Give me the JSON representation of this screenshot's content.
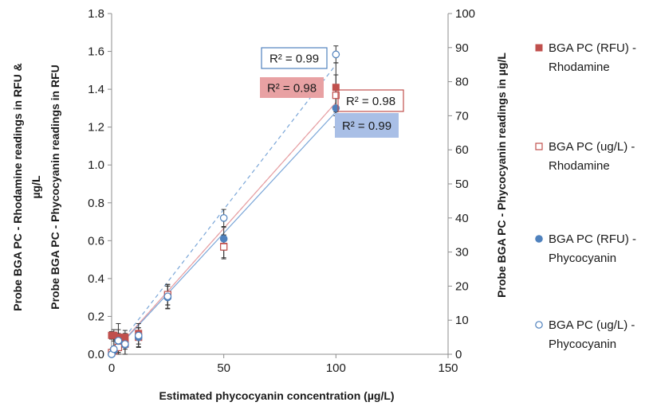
{
  "chart_data": {
    "type": "scatter",
    "xlabel": "Estimated phycocyanin concentration (µg/L)",
    "ylabel_left_line1": "Probe BGA PC - Rhodamine readings in RFU &",
    "ylabel_left_line1b": "µg/L",
    "ylabel_left_line2": "Probe BGA PC - Phycocyanin readings in RFU",
    "ylabel_right": "Probe BGA PC - Phycocyanin readings in µg/L",
    "xlim": [
      0,
      150
    ],
    "ylim_left": [
      0,
      1.8
    ],
    "ylim_right": [
      0,
      100
    ],
    "x_ticks": [
      "0",
      "50",
      "100",
      "150"
    ],
    "y_left_ticks": [
      "0.0",
      "0.2",
      "0.4",
      "0.6",
      "0.8",
      "1.0",
      "1.2",
      "1.4",
      "1.6",
      "1.8"
    ],
    "y_right_ticks": [
      "0",
      "10",
      "20",
      "30",
      "40",
      "50",
      "60",
      "70",
      "80",
      "90",
      "100"
    ],
    "grid": false,
    "legend_position": "right",
    "series": [
      {
        "name": "BGA PC (RFU) - Rhodamine",
        "marker": "filled-square",
        "color": "#c0504d",
        "axis": "left",
        "x": [
          0,
          1,
          3,
          6,
          12,
          25,
          50,
          100
        ],
        "y": [
          0.1,
          0.1,
          0.09,
          0.09,
          0.11,
          0.31,
          0.57,
          1.41
        ],
        "err": [
          0.02,
          0.03,
          0.02,
          0.02,
          0.03,
          0.05,
          0.06,
          0.13
        ],
        "r2": "R² = 0.98",
        "trend_end": 1.33
      },
      {
        "name": "BGA PC (ug/L) - Rhodamine",
        "marker": "open-square",
        "color": "#c0504d",
        "axis": "right",
        "x": [
          0,
          1,
          3,
          6,
          12,
          25,
          50,
          100
        ],
        "y": [
          0.5,
          1.0,
          2.0,
          3.0,
          5.0,
          17.5,
          31.5,
          76.0
        ],
        "err": [
          1.0,
          1.0,
          1.5,
          1.5,
          2.0,
          3.0,
          3.5,
          6.0
        ],
        "r2": "R² = 0.98",
        "trend_end": 73.9
      },
      {
        "name": "BGA PC (RFU) - Phycocyanin",
        "marker": "filled-circle",
        "color": "#4f81bd",
        "axis": "left",
        "x": [
          0,
          1,
          3,
          6,
          12,
          25,
          50,
          100
        ],
        "y": [
          0.0,
          0.02,
          0.07,
          0.05,
          0.09,
          0.3,
          0.61,
          1.3
        ],
        "err": [
          0.02,
          0.06,
          0.06,
          0.05,
          0.05,
          0.06,
          0.06,
          0.1
        ],
        "r2": "R² = 0.99",
        "trend_end": 1.28
      },
      {
        "name": "BGA PC (ug/L) - Phycocyanin",
        "marker": "open-circle",
        "color": "#4f81bd",
        "axis": "right",
        "x": [
          0,
          1,
          3,
          6,
          12,
          25,
          50,
          100
        ],
        "y": [
          0.0,
          1.5,
          4.0,
          3.0,
          5.5,
          17.0,
          40.0,
          88.0
        ],
        "err": [
          1.0,
          5.0,
          5.0,
          4.0,
          3.5,
          3.5,
          2.5,
          2.5
        ],
        "r2": "R² = 0.99",
        "trend_end": 85.0
      }
    ]
  },
  "colors": {
    "rhodamine": "#c0504d",
    "phycocyanin": "#4f81bd",
    "rhodamine_trend": "#e6a0a4",
    "phycocyanin_trend": "#7aa6d8",
    "r2_fill_rhodamine": "#e8a1a3",
    "r2_fill_phycocyanin": "#a9bfe6"
  }
}
